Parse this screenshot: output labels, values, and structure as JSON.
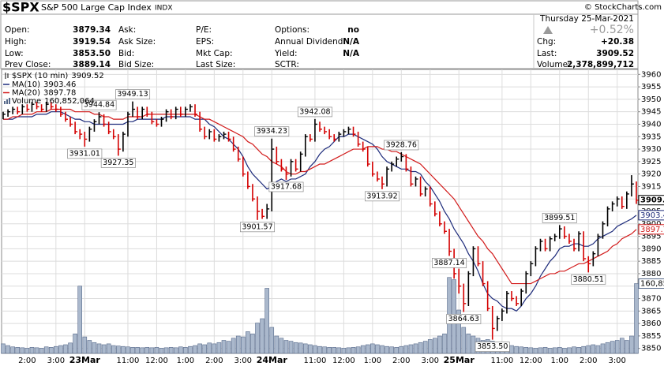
{
  "header": {
    "symbol": "$SPX",
    "name": "S&P 500 Large Cap Index",
    "exchange": "INDX",
    "copyright": "© StockCharts.com",
    "date": "Thursday 25-Mar-2021",
    "change_pct": "+0.52%",
    "quote_columns": [
      [
        {
          "label": "Open:",
          "value": "3879.34"
        },
        {
          "label": "High:",
          "value": "3919.54"
        },
        {
          "label": "Low:",
          "value": "3853.50"
        },
        {
          "label": "Prev Close:",
          "value": "3889.14"
        }
      ],
      [
        {
          "label": "Ask:"
        },
        {
          "label": "Ask Size:"
        },
        {
          "label": "Bid:"
        },
        {
          "label": "Bid Size:"
        }
      ],
      [
        {
          "label": "P/E:"
        },
        {
          "label": "EPS:"
        },
        {
          "label": "Mkt Cap:"
        },
        {
          "label": "Last Size:"
        }
      ],
      [
        {
          "label": "Options:",
          "value": "no"
        },
        {
          "label": "Annual Dividend:",
          "value": "N/A"
        },
        {
          "label": "Yield:",
          "value": "N/A"
        },
        {
          "label": "SCTR:"
        }
      ]
    ],
    "summary": [
      {
        "label": "Chg:",
        "value": "+20.38"
      },
      {
        "label": "Last:",
        "value": "3909.52"
      },
      {
        "label": "Volume:",
        "value": "2,378,899,712"
      }
    ]
  },
  "chart_data": {
    "type": "ohlc",
    "grid": true,
    "categories": [
      null,
      null,
      null,
      null,
      null,
      "2:00",
      null,
      null,
      null,
      null,
      null,
      "3:00",
      null,
      null,
      null,
      null,
      null,
      "23Mar",
      null,
      null,
      null,
      null,
      null,
      null,
      null,
      null,
      "11:00",
      null,
      null,
      null,
      null,
      null,
      "12:00",
      null,
      null,
      null,
      null,
      null,
      "1:00",
      null,
      null,
      null,
      null,
      null,
      "2:00",
      null,
      null,
      null,
      null,
      null,
      "3:00",
      null,
      null,
      null,
      null,
      null,
      "24Mar",
      null,
      null,
      null,
      null,
      null,
      null,
      null,
      null,
      "11:00",
      null,
      null,
      null,
      null,
      null,
      "12:00",
      null,
      null,
      null,
      null,
      null,
      "1:00",
      null,
      null,
      null,
      null,
      null,
      "2:00",
      null,
      null,
      null,
      null,
      null,
      "3:00",
      null,
      null,
      null,
      null,
      null,
      "25Mar",
      null,
      null,
      null,
      null,
      null,
      null,
      null,
      null,
      "11:00",
      null,
      null,
      null,
      null,
      null,
      "12:00",
      null,
      null,
      null,
      null,
      null,
      "1:00",
      null,
      null,
      null,
      null,
      null,
      "2:00",
      null,
      null,
      null,
      null,
      null,
      "3:00",
      null,
      null,
      null,
      null
    ],
    "ylim": [
      3848,
      3962
    ],
    "yticks": [
      3850,
      3855,
      3860,
      3865,
      3870,
      3875,
      3880,
      3885,
      3890,
      3895,
      3900,
      3905,
      3910,
      3915,
      3920,
      3925,
      3930,
      3935,
      3940,
      3945,
      3950,
      3955,
      3960
    ],
    "price": {
      "name": "$SPX (10 min)",
      "up_color": "#000000",
      "down_color": "#d40000",
      "close": [
        3944,
        3945,
        3946,
        3945,
        3947,
        3946,
        3948,
        3947,
        3946,
        3948,
        3947,
        3946,
        3944,
        3942,
        3940,
        3937,
        3936,
        3934,
        3938,
        3941,
        3943,
        3940,
        3937,
        3935,
        3930,
        3936,
        3944,
        3946,
        3943,
        3946,
        3944,
        3941,
        3940,
        3942,
        3945,
        3943,
        3946,
        3944,
        3946,
        3947,
        3944,
        3938,
        3935,
        3937,
        3934,
        3935,
        3936,
        3934,
        3930,
        3926,
        3920,
        3915,
        3910,
        3905,
        3903,
        3906,
        3930,
        3925,
        3922,
        3920,
        3925,
        3922,
        3928,
        3935,
        3934,
        3940,
        3938,
        3937,
        3935,
        3934,
        3936,
        3937,
        3938,
        3936,
        3932,
        3930,
        3924,
        3920,
        3918,
        3916,
        3922,
        3924,
        3926,
        3927,
        3922,
        3916,
        3918,
        3912,
        3914,
        3908,
        3904,
        3900,
        3897,
        3889,
        3880,
        3875,
        3868,
        3880,
        3890,
        3884,
        3876,
        3866,
        3858,
        3862,
        3865,
        3872,
        3870,
        3868,
        3873,
        3880,
        3884,
        3890,
        3893,
        3890,
        3894,
        3895,
        3898,
        3895,
        3893,
        3890,
        3896,
        3886,
        3884,
        3888,
        3895,
        3900,
        3906,
        3908,
        3910,
        3907,
        3912,
        3916,
        3909.52
      ],
      "high": [
        3945,
        3946,
        3947,
        3947,
        3948,
        3948,
        3949,
        3949,
        3948,
        3949,
        3949,
        3948,
        3947,
        3945,
        3943,
        3941,
        3938,
        3937,
        3939,
        3942,
        3944.84,
        3944,
        3941,
        3938,
        3936,
        3937,
        3945,
        3949.13,
        3947,
        3947,
        3947,
        3945,
        3942,
        3943,
        3946,
        3946,
        3947,
        3947,
        3947,
        3948,
        3948,
        3945,
        3939,
        3938,
        3938,
        3936,
        3937,
        3937,
        3935,
        3931,
        3927,
        3921,
        3916,
        3911,
        3906,
        3908,
        3934.23,
        3931,
        3926,
        3923,
        3926,
        3926,
        3929,
        3936,
        3936,
        3942.08,
        3941,
        3939,
        3938,
        3936,
        3937,
        3938,
        3939,
        3939,
        3937,
        3933,
        3931,
        3925,
        3921,
        3919,
        3923,
        3925,
        3927,
        3928.76,
        3928,
        3923,
        3919,
        3919,
        3915,
        3915,
        3909,
        3905,
        3901,
        3898,
        3890,
        3882,
        3876,
        3881,
        3891,
        3891,
        3885,
        3877,
        3867,
        3863,
        3866,
        3873,
        3873,
        3871,
        3874,
        3881,
        3885,
        3891,
        3894,
        3894,
        3895,
        3896,
        3899.51,
        3899,
        3896,
        3894,
        3897,
        3897,
        3887,
        3889,
        3896,
        3901,
        3907,
        3909,
        3911,
        3911,
        3913,
        3919.54,
        3917
      ],
      "low": [
        3942,
        3943,
        3944,
        3944,
        3944,
        3945,
        3945,
        3946,
        3945,
        3945,
        3946,
        3945,
        3943,
        3941,
        3939,
        3936,
        3934,
        3931.01,
        3933,
        3937,
        3940,
        3939,
        3936,
        3934,
        3927.35,
        3929,
        3935,
        3943,
        3942,
        3942,
        3943,
        3940,
        3939,
        3939,
        3941,
        3942,
        3942,
        3943,
        3943,
        3945,
        3943,
        3937,
        3934,
        3934,
        3933,
        3933,
        3934,
        3933,
        3929,
        3925,
        3919,
        3914,
        3909,
        3901.57,
        3902,
        3902,
        3905,
        3924,
        3921,
        3917.68,
        3919,
        3921,
        3921,
        3927,
        3933,
        3933,
        3937,
        3936,
        3934,
        3933,
        3933,
        3935,
        3936,
        3935,
        3931,
        3929,
        3923,
        3919,
        3917,
        3913.92,
        3915,
        3921,
        3923,
        3925,
        3921,
        3915,
        3915,
        3911,
        3911,
        3907,
        3903,
        3899,
        3896,
        3887.14,
        3878,
        3872,
        3864.63,
        3867,
        3879,
        3883,
        3875,
        3865,
        3853.5,
        3857,
        3861,
        3864,
        3869,
        3867,
        3867,
        3872,
        3879,
        3883,
        3889,
        3889,
        3889,
        3893,
        3894,
        3894,
        3892,
        3889,
        3889,
        3885,
        3880.51,
        3883,
        3887,
        3894,
        3899,
        3905,
        3907,
        3906,
        3906,
        3911,
        3908
      ],
      "labels": [
        null,
        null,
        null,
        null,
        null,
        null,
        null,
        null,
        null,
        null,
        null,
        null,
        null,
        null,
        null,
        null,
        null,
        "3931.01",
        null,
        null,
        "3944.84",
        null,
        null,
        null,
        "3927.35",
        null,
        null,
        "3949.13",
        null,
        null,
        null,
        null,
        null,
        null,
        null,
        null,
        null,
        null,
        null,
        null,
        null,
        null,
        null,
        null,
        null,
        null,
        null,
        null,
        null,
        null,
        null,
        null,
        null,
        "3901.57",
        null,
        null,
        "3934.23",
        null,
        null,
        "3917.68",
        null,
        null,
        null,
        null,
        null,
        "3942.08",
        null,
        null,
        null,
        null,
        null,
        null,
        null,
        null,
        null,
        null,
        null,
        null,
        null,
        "3913.92",
        null,
        null,
        null,
        "3928.76",
        null,
        null,
        null,
        null,
        null,
        null,
        null,
        null,
        null,
        "3887.14",
        null,
        null,
        "3864.63",
        null,
        null,
        null,
        null,
        null,
        "3853.50",
        null,
        null,
        null,
        null,
        null,
        null,
        null,
        null,
        null,
        null,
        null,
        null,
        null,
        "3899.51",
        null,
        null,
        null,
        null,
        null,
        "3880.51",
        null,
        null,
        null,
        null,
        null,
        null,
        null,
        null,
        null,
        null
      ]
    },
    "ma": [
      {
        "name": "MA(10)",
        "color": "#1c2a7a",
        "values": [
          3942,
          3942,
          3942,
          3943,
          3943,
          3943,
          3943,
          3944,
          3944,
          3944,
          3945,
          3945,
          3945,
          3944,
          3943,
          3942,
          3942,
          3941,
          3941,
          3940,
          3940,
          3940,
          3940,
          3940,
          3940,
          3940,
          3941,
          3941,
          3942,
          3942,
          3942,
          3942,
          3942,
          3942,
          3943,
          3943,
          3943,
          3943,
          3943,
          3943,
          3942,
          3942,
          3942,
          3940,
          3939,
          3937,
          3935,
          3934,
          3932,
          3930,
          3927,
          3923,
          3920,
          3918,
          3916,
          3914,
          3915,
          3917,
          3918,
          3917,
          3918,
          3918,
          3919,
          3920,
          3923,
          3925,
          3928,
          3930,
          3931,
          3933,
          3935,
          3935,
          3936,
          3936,
          3935,
          3934,
          3933,
          3932,
          3930,
          3927,
          3925,
          3924,
          3923,
          3922,
          3922,
          3921,
          3921,
          3920,
          3917,
          3915,
          3912,
          3909,
          3905,
          3902,
          3898,
          3895,
          3892,
          3888,
          3885,
          3881,
          3876,
          3872,
          3870,
          3869,
          3867,
          3866,
          3866,
          3865,
          3867,
          3870,
          3872,
          3875,
          3879,
          3882,
          3885,
          3887,
          3890,
          3891,
          3891,
          3892,
          3892,
          3891,
          3891,
          3892,
          3894,
          3895,
          3896,
          3897,
          3899,
          3900,
          3901,
          3902,
          3903.46
        ]
      },
      {
        "name": "MA(20)",
        "color": "#d21a1a",
        "values": [
          3942,
          3942,
          3943,
          3943,
          3944,
          3944,
          3944,
          3945,
          3945,
          3945,
          3946,
          3946,
          3946,
          3946,
          3946,
          3945,
          3945,
          3945,
          3945,
          3944,
          3944,
          3943,
          3943,
          3942,
          3942,
          3942,
          3943,
          3943,
          3943,
          3943,
          3944,
          3944,
          3944,
          3944,
          3944,
          3944,
          3944,
          3944,
          3944,
          3944,
          3944,
          3943,
          3942,
          3942,
          3941,
          3940,
          3939,
          3938,
          3937,
          3936,
          3935,
          3933,
          3932,
          3930,
          3928,
          3927,
          3925,
          3924,
          3923,
          3921,
          3920,
          3920,
          3921,
          3921,
          3922,
          3923,
          3924,
          3924,
          3925,
          3926,
          3927,
          3928,
          3929,
          3930,
          3930,
          3930,
          3931,
          3931,
          3931,
          3930,
          3930,
          3929,
          3929,
          3928,
          3927,
          3926,
          3925,
          3924,
          3922,
          3920,
          3918,
          3916,
          3914,
          3912,
          3910,
          3907,
          3904,
          3901,
          3898,
          3895,
          3893,
          3890,
          3888,
          3885,
          3882,
          3879,
          3876,
          3876,
          3876,
          3876,
          3876,
          3877,
          3878,
          3879,
          3880,
          3880,
          3881,
          3881,
          3882,
          3883,
          3884,
          3884,
          3885,
          3886,
          3887,
          3888,
          3889,
          3891,
          3892,
          3894,
          3895,
          3896,
          3897.78
        ]
      }
    ],
    "volume": {
      "name": "Volume",
      "color": "#aab8cc",
      "last_label": "160,852,064",
      "lim": [
        0,
        200000000
      ],
      "values": [
        22000000,
        18000000,
        15000000,
        14000000,
        13000000,
        12000000,
        14000000,
        13000000,
        12000000,
        15000000,
        14000000,
        16000000,
        18000000,
        20000000,
        24000000,
        45000000,
        155000000,
        38000000,
        30000000,
        25000000,
        22000000,
        20000000,
        22000000,
        18000000,
        17000000,
        16000000,
        15000000,
        14000000,
        14000000,
        13000000,
        14000000,
        13000000,
        14000000,
        12000000,
        13000000,
        14000000,
        13000000,
        15000000,
        14000000,
        16000000,
        18000000,
        22000000,
        20000000,
        24000000,
        22000000,
        25000000,
        30000000,
        28000000,
        35000000,
        40000000,
        38000000,
        50000000,
        45000000,
        70000000,
        80000000,
        150000000,
        60000000,
        40000000,
        35000000,
        30000000,
        28000000,
        25000000,
        24000000,
        22000000,
        20000000,
        18000000,
        16000000,
        15000000,
        14000000,
        14000000,
        13000000,
        12000000,
        13000000,
        14000000,
        15000000,
        18000000,
        20000000,
        22000000,
        20000000,
        18000000,
        16000000,
        15000000,
        14000000,
        16000000,
        18000000,
        20000000,
        22000000,
        25000000,
        28000000,
        32000000,
        35000000,
        40000000,
        45000000,
        175000000,
        170000000,
        100000000,
        60000000,
        45000000,
        40000000,
        35000000,
        30000000,
        32000000,
        28000000,
        25000000,
        22000000,
        20000000,
        18000000,
        16000000,
        15000000,
        14000000,
        13000000,
        12000000,
        13000000,
        14000000,
        12000000,
        13000000,
        14000000,
        12000000,
        13000000,
        15000000,
        14000000,
        16000000,
        18000000,
        20000000,
        18000000,
        22000000,
        25000000,
        28000000,
        30000000,
        35000000,
        30000000,
        40000000,
        160852064
      ]
    }
  }
}
